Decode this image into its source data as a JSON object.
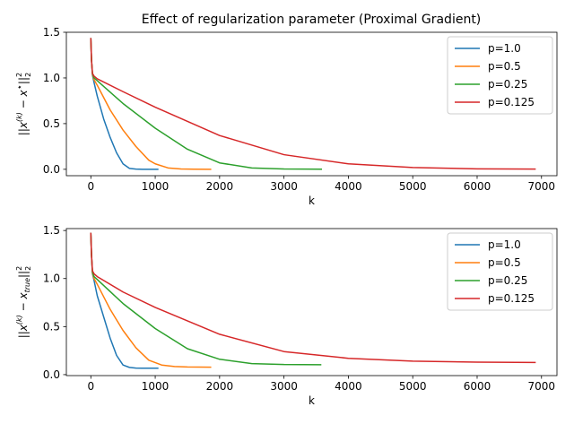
{
  "figure": {
    "title": "Effect of regularization parameter (Proximal Gradient)"
  },
  "chart_data": [
    {
      "type": "line",
      "title": "Effect of regularization parameter (Proximal Gradient)",
      "xlabel": "k",
      "ylabel": "||x^(k) - x*||_2^2",
      "xlim": [
        -380,
        7240
      ],
      "ylim": [
        -0.07,
        1.5
      ],
      "x_ticks": [
        0,
        1000,
        2000,
        3000,
        4000,
        5000,
        6000,
        7000
      ],
      "y_ticks": [
        0.0,
        0.5,
        1.0,
        1.5
      ],
      "grid": false,
      "legend_position": "top-right",
      "series": [
        {
          "name": "p=1.0",
          "color": "#1f77b4",
          "x": [
            0,
            10,
            25,
            50,
            100,
            200,
            300,
            400,
            500,
            600,
            700,
            800,
            900,
            1040
          ],
          "y": [
            1.43,
            1.2,
            1.03,
            0.95,
            0.8,
            0.55,
            0.35,
            0.18,
            0.06,
            0.01,
            0.002,
            0.0,
            0.0,
            0.0
          ]
        },
        {
          "name": "p=0.5",
          "color": "#ff7f0e",
          "x": [
            0,
            10,
            25,
            50,
            100,
            300,
            500,
            700,
            900,
            1000,
            1200,
            1400,
            1600,
            1860
          ],
          "y": [
            1.43,
            1.2,
            1.04,
            0.98,
            0.92,
            0.65,
            0.43,
            0.25,
            0.1,
            0.06,
            0.015,
            0.004,
            0.001,
            0.0
          ]
        },
        {
          "name": "p=0.25",
          "color": "#2ca02c",
          "x": [
            0,
            10,
            25,
            50,
            100,
            500,
            1000,
            1500,
            2000,
            2500,
            3000,
            3580
          ],
          "y": [
            1.43,
            1.2,
            1.05,
            1.0,
            0.97,
            0.72,
            0.45,
            0.22,
            0.07,
            0.015,
            0.003,
            0.001
          ]
        },
        {
          "name": "p=0.125",
          "color": "#d62728",
          "x": [
            0,
            10,
            25,
            50,
            100,
            500,
            1000,
            2000,
            3000,
            4000,
            5000,
            6000,
            6900
          ],
          "y": [
            1.43,
            1.2,
            1.05,
            1.02,
            0.99,
            0.85,
            0.68,
            0.37,
            0.16,
            0.06,
            0.02,
            0.005,
            0.002
          ]
        }
      ]
    },
    {
      "type": "line",
      "title": "",
      "xlabel": "k",
      "ylabel": "||x^(k) - x_true||_2^2",
      "xlim": [
        -380,
        7240
      ],
      "ylim": [
        -0.01,
        1.52
      ],
      "x_ticks": [
        0,
        1000,
        2000,
        3000,
        4000,
        5000,
        6000,
        7000
      ],
      "y_ticks": [
        0.0,
        0.5,
        1.0,
        1.5
      ],
      "grid": false,
      "legend_position": "top-right",
      "series": [
        {
          "name": "p=1.0",
          "color": "#1f77b4",
          "x": [
            0,
            10,
            25,
            50,
            100,
            200,
            300,
            400,
            500,
            600,
            700,
            800,
            1040
          ],
          "y": [
            1.47,
            1.25,
            1.05,
            0.98,
            0.82,
            0.6,
            0.38,
            0.2,
            0.1,
            0.075,
            0.068,
            0.067,
            0.067
          ]
        },
        {
          "name": "p=0.5",
          "color": "#ff7f0e",
          "x": [
            0,
            10,
            25,
            50,
            100,
            300,
            500,
            700,
            900,
            1100,
            1300,
            1500,
            1860
          ],
          "y": [
            1.47,
            1.25,
            1.06,
            1.0,
            0.94,
            0.68,
            0.46,
            0.28,
            0.15,
            0.1,
            0.085,
            0.08,
            0.078
          ]
        },
        {
          "name": "p=0.25",
          "color": "#2ca02c",
          "x": [
            0,
            10,
            25,
            50,
            100,
            500,
            1000,
            1500,
            2000,
            2500,
            3000,
            3570
          ],
          "y": [
            1.47,
            1.25,
            1.07,
            1.02,
            0.99,
            0.74,
            0.48,
            0.27,
            0.16,
            0.115,
            0.105,
            0.103
          ]
        },
        {
          "name": "p=0.125",
          "color": "#d62728",
          "x": [
            0,
            10,
            25,
            50,
            100,
            500,
            1000,
            2000,
            3000,
            4000,
            5000,
            6000,
            6900
          ],
          "y": [
            1.47,
            1.25,
            1.08,
            1.05,
            1.02,
            0.86,
            0.7,
            0.42,
            0.24,
            0.17,
            0.14,
            0.13,
            0.127
          ]
        }
      ]
    }
  ]
}
